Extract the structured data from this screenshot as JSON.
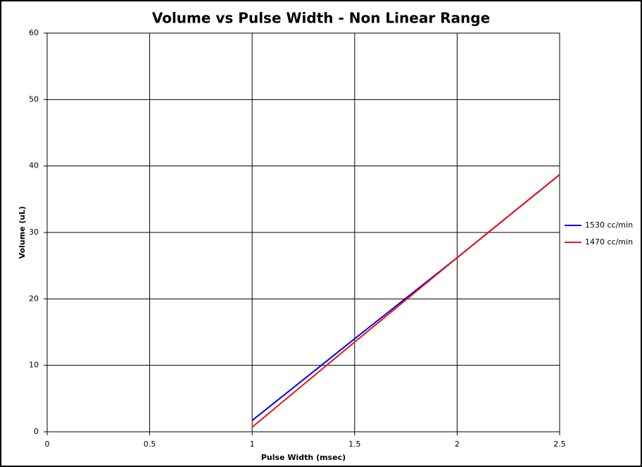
{
  "chart_data": {
    "type": "line",
    "title": "Volume vs Pulse Width - Non Linear Range",
    "x_label": "Pulse Width (msec)",
    "y_label": "Volume (uL)",
    "x": [
      1,
      1.5,
      2,
      2.5
    ],
    "series": [
      {
        "name": "1530 cc/min",
        "color": "#0000ee",
        "values": [
          1.7,
          14.0,
          26.2,
          38.7
        ]
      },
      {
        "name": "1470 cc/min",
        "color": "#ee1111",
        "values": [
          0.7,
          13.5,
          26.2,
          38.7
        ]
      }
    ],
    "xlim": [
      0,
      2.5
    ],
    "xticks": [
      0,
      0.5,
      1,
      1.5,
      2,
      2.5
    ],
    "ylim": [
      0,
      60
    ],
    "yticks": [
      0,
      10,
      20,
      30,
      40,
      50,
      60
    ],
    "grid": true,
    "legend": "right"
  }
}
